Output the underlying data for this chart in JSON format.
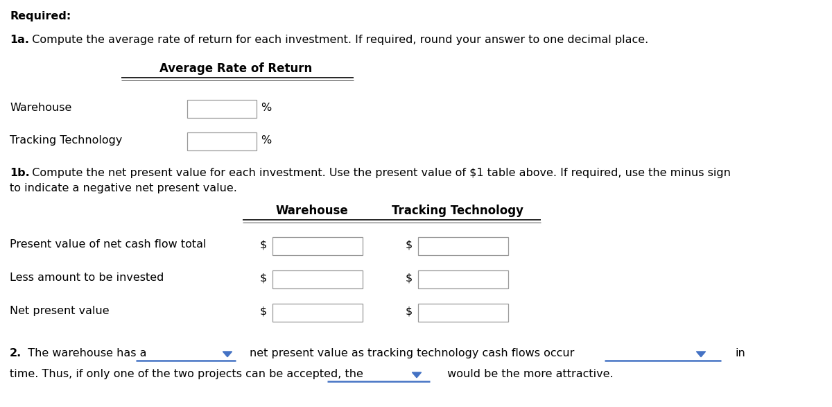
{
  "bg_color": "#ffffff",
  "text_color": "#000000",
  "box_color": "#ffffff",
  "box_edge_color": "#999999",
  "line_color": "#000000",
  "underline_color": "#4472c4",
  "arrow_color": "#4472c4",
  "title": "Required:",
  "section1a_bold": "1a.",
  "section1a_rest": "  Compute the average rate of return for each investment. If required, round your answer to one decimal place.",
  "avg_rate_header": "Average Rate of Return",
  "warehouse_label": "Warehouse",
  "tracking_label": "Tracking Technology",
  "percent": "%",
  "section1b_bold": "1b.",
  "section1b_rest": "  Compute the net present value for each investment. Use the present value of $1 table above. If required, use the minus sign",
  "section1b_line2": "to indicate a negative net present value.",
  "col1_header": "Warehouse",
  "col2_header": "Tracking Technology",
  "row1_label": "Present value of net cash flow total",
  "row2_label": "Less amount to be invested",
  "row3_label": "Net present value",
  "dollar": "$",
  "section2_bold": "2.",
  "section2_rest": "  The warehouse has a",
  "section2_middle": "  net present value as tracking technology cash flows occur",
  "section2_end": "  in",
  "section2_line2_start": "time. Thus, if only one of the two projects can be accepted, the",
  "section2_line2_end": " would be the more attractive."
}
